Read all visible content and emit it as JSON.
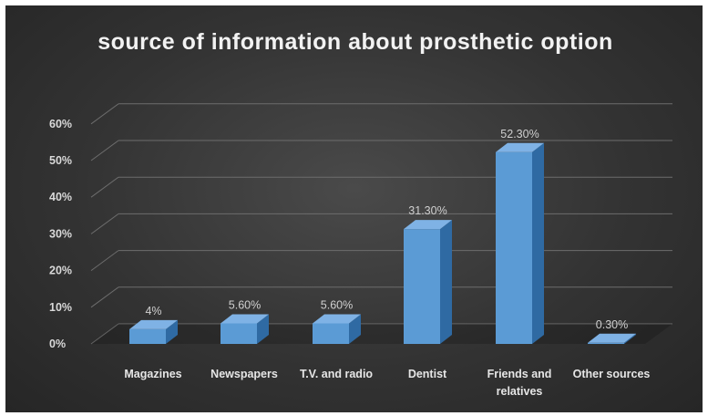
{
  "chart_data": {
    "type": "bar",
    "title": "source of information about prosthetic option",
    "categories": [
      "Magazines",
      "Newspapers",
      "T.V. and radio",
      "Dentist",
      "Friends and relatives",
      "Other sources"
    ],
    "category_lines": [
      [
        "Magazines"
      ],
      [
        "Newspapers"
      ],
      [
        "T.V. and radio"
      ],
      [
        "Dentist"
      ],
      [
        "Friends and",
        "relatives"
      ],
      [
        "Other sources"
      ]
    ],
    "values": [
      4,
      5.6,
      5.6,
      31.3,
      52.3,
      0.3
    ],
    "data_labels": [
      "4%",
      "5.60%",
      "5.60%",
      "31.30%",
      "52.30%",
      "0.30%"
    ],
    "y_ticks": [
      "0%",
      "10%",
      "20%",
      "30%",
      "40%",
      "50%",
      "60%"
    ],
    "ylim": [
      0,
      60
    ],
    "xlabel": "",
    "ylabel": "",
    "grid": true,
    "legend": "none",
    "style": "3d-column",
    "colors": {
      "bar_front": "#5b9bd5",
      "bar_side": "#2f6aa3",
      "bar_top": "#7fb2e5",
      "grid": "#6d6d6d",
      "background": "#333333"
    }
  }
}
